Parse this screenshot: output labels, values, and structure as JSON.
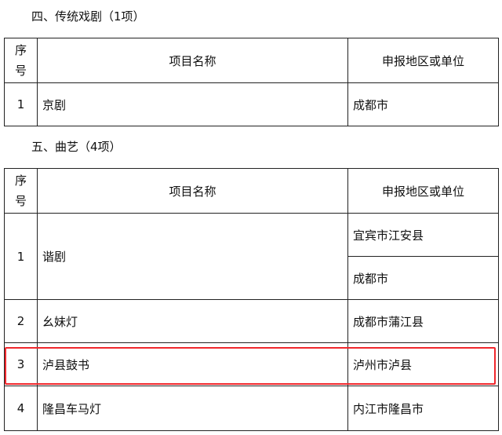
{
  "sections": [
    {
      "heading": "四、传统戏剧（1项）",
      "columns": {
        "seq_line1": "序",
        "seq_line2": "号",
        "name": "项目名称",
        "region": "申报地区或单位"
      },
      "rows": [
        {
          "no": "1",
          "name": "京剧",
          "regions": [
            "成都市"
          ]
        }
      ]
    },
    {
      "heading": "五、曲艺（4项）",
      "columns": {
        "seq_line1": "序",
        "seq_line2": "号",
        "name": "项目名称",
        "region": "申报地区或单位"
      },
      "rows": [
        {
          "no": "1",
          "name": "谐剧",
          "regions": [
            "宜宾市江安县",
            "成都市"
          ]
        },
        {
          "no": "2",
          "name": "幺妹灯",
          "regions": [
            "成都市蒲江县"
          ]
        },
        {
          "no": "3",
          "name": "泸县鼓书",
          "regions": [
            "泸州市泸县"
          ],
          "highlighted": true
        },
        {
          "no": "4",
          "name": "隆昌车马灯",
          "regions": [
            "内江市隆昌市"
          ]
        }
      ]
    }
  ],
  "highlight_color": "#f0282d"
}
